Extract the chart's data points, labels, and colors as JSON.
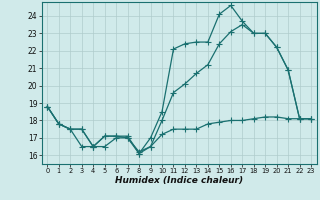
{
  "title": "",
  "xlabel": "Humidex (Indice chaleur)",
  "bg_color": "#d0eaea",
  "grid_color": "#b0cccc",
  "line_color": "#1a7070",
  "xlim": [
    -0.5,
    23.5
  ],
  "ylim": [
    15.5,
    24.8
  ],
  "yticks": [
    16,
    17,
    18,
    19,
    20,
    21,
    22,
    23,
    24
  ],
  "xticks": [
    0,
    1,
    2,
    3,
    4,
    5,
    6,
    7,
    8,
    9,
    10,
    11,
    12,
    13,
    14,
    15,
    16,
    17,
    18,
    19,
    20,
    21,
    22,
    23
  ],
  "line1_x": [
    0,
    1,
    2,
    3,
    4,
    5,
    6,
    7,
    8,
    9,
    10,
    11,
    12,
    13,
    14,
    15,
    16,
    17,
    18,
    19,
    20,
    21,
    22,
    23
  ],
  "line1_y": [
    18.8,
    17.8,
    17.5,
    17.5,
    16.5,
    17.1,
    17.1,
    17.1,
    16.1,
    17.0,
    18.5,
    22.1,
    22.4,
    22.5,
    22.5,
    24.1,
    24.6,
    23.7,
    23.0,
    23.0,
    22.2,
    20.9,
    18.1,
    18.1
  ],
  "line2_x": [
    0,
    1,
    2,
    3,
    4,
    5,
    6,
    7,
    8,
    9,
    10,
    11,
    12,
    13,
    14,
    15,
    16,
    17,
    18,
    19,
    20,
    21,
    22,
    23
  ],
  "line2_y": [
    18.8,
    17.8,
    17.5,
    16.5,
    16.5,
    16.5,
    17.0,
    17.0,
    16.2,
    16.5,
    17.2,
    17.5,
    17.5,
    17.5,
    17.8,
    17.9,
    18.0,
    18.0,
    18.1,
    18.2,
    18.2,
    18.1,
    18.1,
    18.1
  ],
  "line3_x": [
    0,
    1,
    2,
    3,
    4,
    5,
    6,
    7,
    8,
    9,
    10,
    11,
    12,
    13,
    14,
    15,
    16,
    17,
    18,
    19,
    20,
    21,
    22,
    23
  ],
  "line3_y": [
    18.8,
    17.8,
    17.5,
    17.5,
    16.5,
    17.1,
    17.1,
    17.0,
    16.1,
    16.5,
    18.0,
    19.6,
    20.1,
    20.7,
    21.2,
    22.4,
    23.1,
    23.5,
    23.0,
    23.0,
    22.2,
    20.9,
    18.1,
    18.1
  ],
  "tick_fontsize": 5.5,
  "xlabel_fontsize": 6.5
}
